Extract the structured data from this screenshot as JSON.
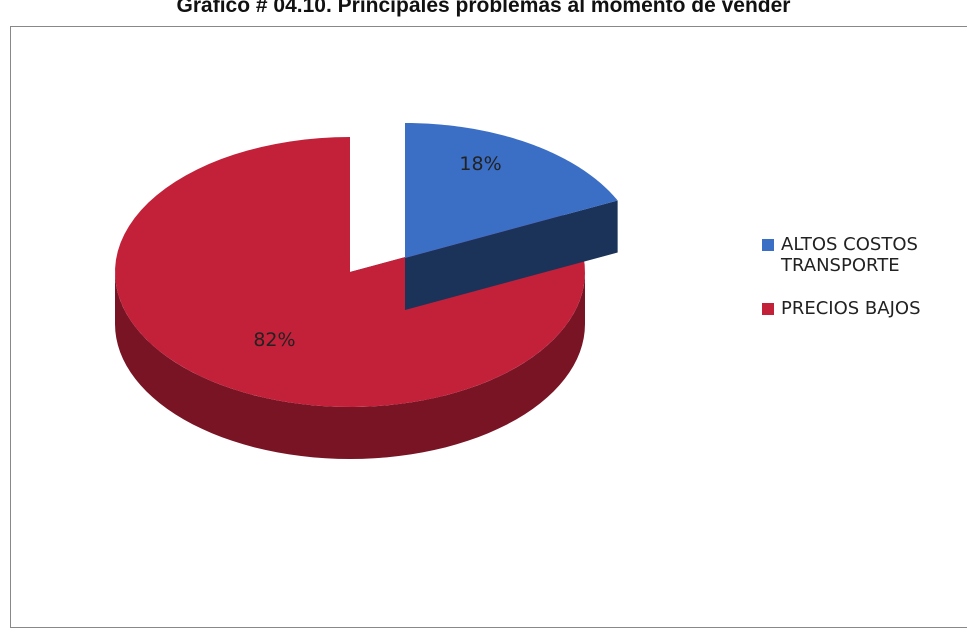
{
  "chart_data": {
    "type": "pie",
    "title": "Gráfico # 04.10. Principales problemas al momento de vender",
    "categories": [
      "ALTOS COSTOS TRANSPORTE",
      "PRECIOS BAJOS"
    ],
    "values": [
      18,
      82
    ],
    "value_labels": [
      "18%",
      "82%"
    ],
    "colors": [
      "#3b6fc6",
      "#c3203a"
    ],
    "legend": "right"
  }
}
